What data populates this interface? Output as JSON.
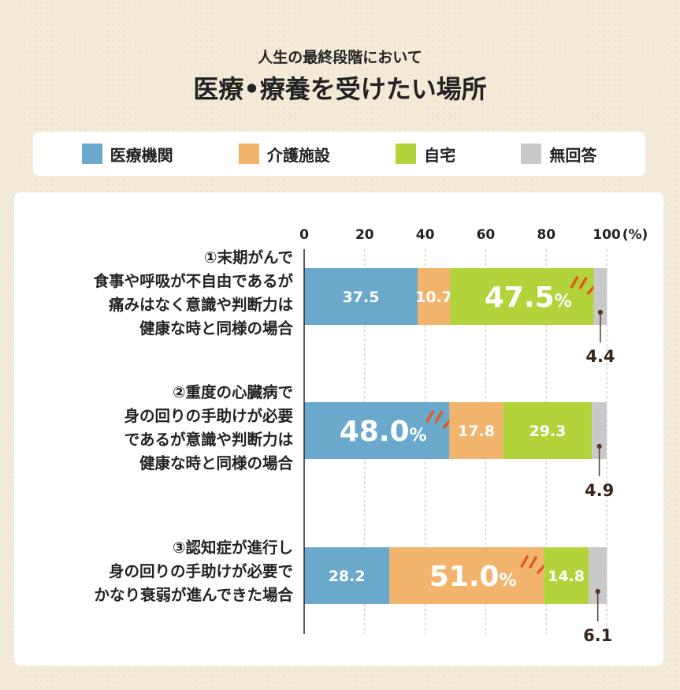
{
  "header": {
    "subtitle": "人生の最終段階において",
    "title": "医療•療養を受けたい場所"
  },
  "legend": [
    {
      "label": "医療機関",
      "color": "#6aa9cc"
    },
    {
      "label": "介護施設",
      "color": "#f2b46c"
    },
    {
      "label": "自宅",
      "color": "#b2d43a"
    },
    {
      "label": "無回答",
      "color": "#c9c9c9"
    }
  ],
  "chart_data": {
    "type": "bar",
    "orientation": "horizontal",
    "stacked": true,
    "xlim": [
      0,
      100
    ],
    "x_ticks": [
      "0",
      "20",
      "40",
      "60",
      "80",
      "100"
    ],
    "x_unit": "(%)",
    "grid": true,
    "categories": [
      "①末期がんで\n食事や呼吸が不自由であるが\n痛みはなく意識や判断力は\n健康な時と同様の場合",
      "②重度の心臓病で\n身の回りの手助けが必要\nであるが意識や判断力は\n健康な時と同様の場合",
      "③認知症が進行し\n身の回りの手助けが必要で\nかなり衰弱が進んできた場合"
    ],
    "series": [
      {
        "name": "医療機関",
        "values": [
          37.5,
          48.0,
          28.2
        ]
      },
      {
        "name": "介護施設",
        "values": [
          10.7,
          17.8,
          51.0
        ]
      },
      {
        "name": "自宅",
        "values": [
          47.5,
          29.3,
          14.8
        ]
      },
      {
        "name": "無回答",
        "values": [
          4.4,
          4.9,
          6.1
        ]
      }
    ],
    "data_labels": [
      [
        "37.5",
        "10.7",
        "47.5",
        "4.4"
      ],
      [
        "48.0",
        "17.8",
        "29.3",
        "4.9"
      ],
      [
        "28.2",
        "51.0",
        "14.8",
        "6.1"
      ]
    ],
    "percent_sign": "%"
  }
}
